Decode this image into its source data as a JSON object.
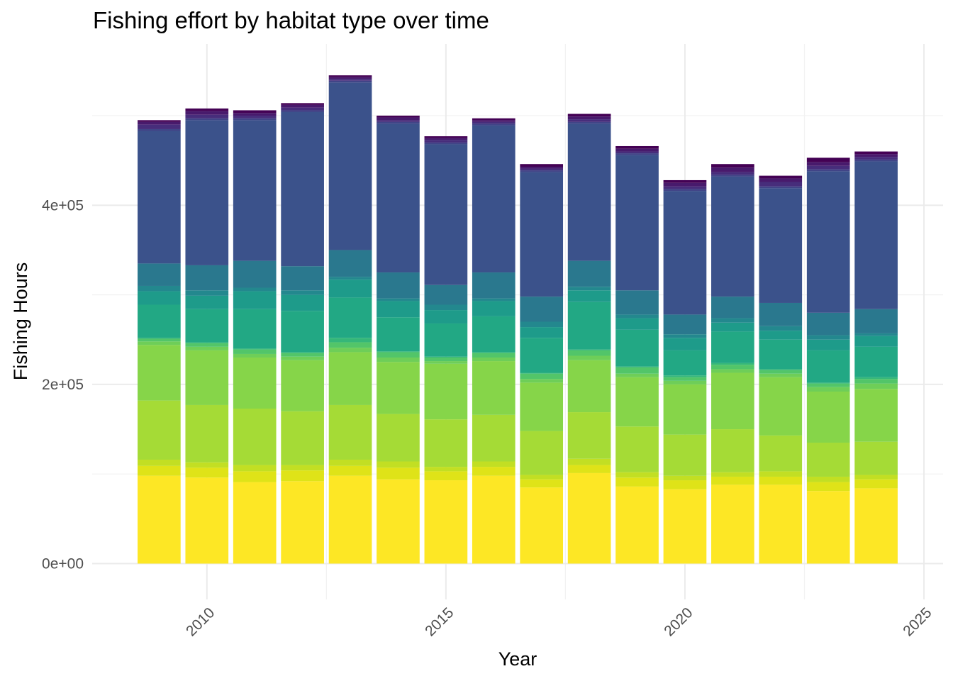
{
  "chart_data": {
    "type": "bar",
    "stacked": true,
    "title": "Fishing effort by habitat type over time",
    "xlabel": "Year",
    "ylabel": "Fishing Hours",
    "x": [
      2009,
      2010,
      2011,
      2012,
      2013,
      2014,
      2015,
      2016,
      2017,
      2018,
      2019,
      2020,
      2021,
      2022,
      2023,
      2024
    ],
    "xlim": [
      2007.6,
      2025.4
    ],
    "ylim": [
      -40000,
      580000
    ],
    "x_ticks": [
      2010,
      2015,
      2020,
      2025
    ],
    "x_tick_labels": [
      "2010",
      "2015",
      "2020",
      "2025"
    ],
    "y_ticks": [
      0,
      200000,
      400000
    ],
    "y_tick_labels": [
      "0e+00",
      "2e+05",
      "4e+05"
    ],
    "grid": true,
    "legend": "none",
    "series": [
      {
        "color": "#FDE725",
        "values": [
          98000,
          96000,
          91000,
          92000,
          98000,
          94000,
          93000,
          98000,
          85000,
          101000,
          86000,
          83000,
          88000,
          88000,
          81000,
          84000
        ]
      },
      {
        "color": "#DFE318",
        "values": [
          11000,
          11000,
          12000,
          12000,
          11000,
          13000,
          10000,
          10000,
          9000,
          9000,
          10000,
          10000,
          9000,
          9000,
          10000,
          10000
        ]
      },
      {
        "color": "#C2DF23",
        "values": [
          7000,
          6000,
          7000,
          6000,
          7000,
          7000,
          5000,
          6000,
          5000,
          7000,
          6000,
          5000,
          5000,
          6000,
          6000,
          5000
        ]
      },
      {
        "color": "#A5DB36",
        "values": [
          66000,
          64000,
          63000,
          60000,
          61000,
          53000,
          53000,
          52000,
          49000,
          52000,
          51000,
          46000,
          48000,
          40000,
          38000,
          37000
        ]
      },
      {
        "color": "#86D549",
        "values": [
          62000,
          61000,
          57000,
          57000,
          59000,
          58000,
          62000,
          60000,
          54000,
          58000,
          55000,
          56000,
          63000,
          65000,
          57000,
          59000
        ]
      },
      {
        "color": "#6ECE58",
        "values": [
          4000,
          4000,
          4000,
          4000,
          5000,
          5000,
          3000,
          4000,
          4000,
          5000,
          4000,
          4000,
          4000,
          4000,
          5000,
          6000
        ]
      },
      {
        "color": "#52C569",
        "values": [
          3000,
          4000,
          5000,
          4000,
          6000,
          6000,
          4000,
          5000,
          6000,
          6000,
          7000,
          4000,
          5000,
          4000,
          4000,
          5000
        ]
      },
      {
        "color": "#35B779",
        "values": [
          1000,
          1000,
          1000,
          1000,
          5000,
          1000,
          1000,
          1000,
          1000,
          1000,
          1000,
          2000,
          2000,
          1000,
          1000,
          2000
        ]
      },
      {
        "color": "#22A884",
        "values": [
          37000,
          37000,
          44000,
          46000,
          45000,
          38000,
          37000,
          40000,
          39000,
          53000,
          41000,
          28000,
          35000,
          33000,
          36000,
          34000
        ]
      },
      {
        "color": "#1E9B8A",
        "values": [
          15000,
          15000,
          20000,
          18000,
          20000,
          18000,
          15000,
          17000,
          12000,
          13000,
          13000,
          14000,
          10000,
          10000,
          12000,
          12000
        ]
      },
      {
        "color": "#23888E",
        "values": [
          6000,
          6000,
          4000,
          5000,
          3000,
          3000,
          6000,
          3000,
          6000,
          4000,
          4000,
          4000,
          5000,
          5000,
          5000,
          3000
        ]
      },
      {
        "color": "#2A788E",
        "values": [
          25000,
          28000,
          30000,
          27000,
          30000,
          29000,
          22000,
          29000,
          28000,
          29000,
          27000,
          22000,
          24000,
          26000,
          25000,
          27000
        ]
      },
      {
        "color": "#3B528B",
        "values": [
          148000,
          162000,
          157000,
          172000,
          187000,
          166000,
          157000,
          164000,
          139000,
          153000,
          151000,
          138000,
          134000,
          128000,
          158000,
          165000
        ]
      },
      {
        "color": "#414487",
        "values": [
          2000,
          2000,
          2000,
          2000,
          2000,
          2000,
          2000,
          2000,
          2000,
          2000,
          2000,
          2000,
          2000,
          2000,
          2000,
          2000
        ]
      },
      {
        "color": "#472D7B",
        "values": [
          5000,
          4000,
          3000,
          3000,
          2000,
          2000,
          3000,
          2000,
          2000,
          3000,
          2000,
          3000,
          3000,
          5000,
          4000,
          3000
        ]
      },
      {
        "color": "#481A6C",
        "values": [
          3000,
          4000,
          3000,
          3000,
          2000,
          3000,
          2000,
          2000,
          2000,
          3000,
          3000,
          4000,
          5000,
          4000,
          4000,
          3000
        ]
      },
      {
        "color": "#440154",
        "values": [
          2000,
          3000,
          3000,
          2000,
          2000,
          2000,
          2000,
          2000,
          3000,
          3000,
          3000,
          3000,
          4000,
          3000,
          5000,
          3000
        ]
      }
    ]
  }
}
